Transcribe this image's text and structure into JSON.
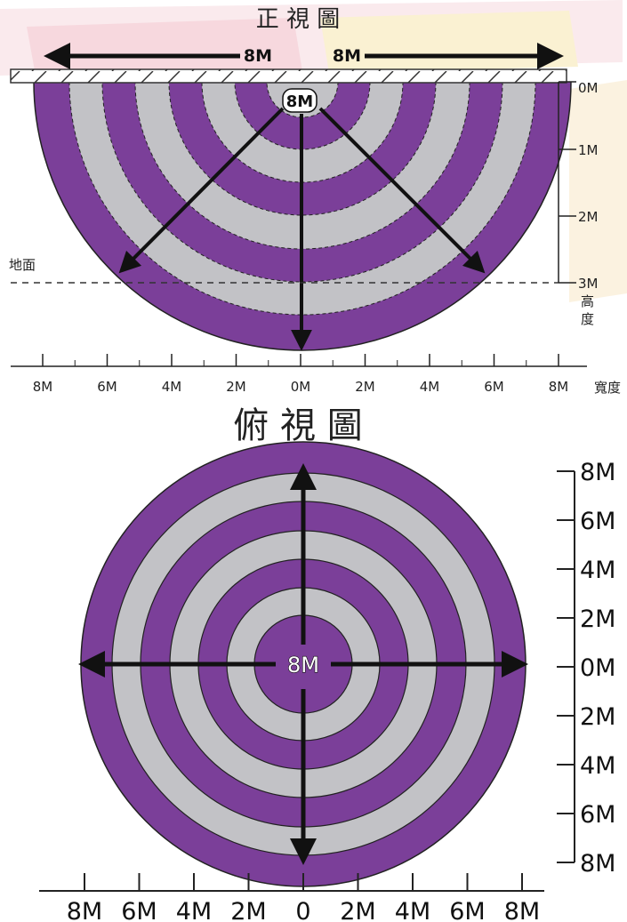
{
  "front_view": {
    "title": "正 視 圖",
    "left_arrow_label": "8M",
    "right_arrow_label": "8M",
    "center_label": "8M",
    "ground_label": "地面",
    "height_axis": {
      "ticks": [
        "0M",
        "1M",
        "2M",
        "3M"
      ],
      "label": "高度"
    },
    "width_axis": {
      "ticks": [
        "8M",
        "6M",
        "4M",
        "2M",
        "0M",
        "2M",
        "4M",
        "6M",
        "8M"
      ],
      "label": "寬度"
    }
  },
  "top_view": {
    "title": "俯 視 圖",
    "center_label": "8M",
    "y_axis_ticks": [
      "8M",
      "6M",
      "4M",
      "2M",
      "0M",
      "2M",
      "4M",
      "6M",
      "8M"
    ],
    "x_axis_ticks": [
      "8M",
      "6M",
      "4M",
      "2M",
      "0",
      "2M",
      "4M",
      "6M",
      "8M"
    ]
  },
  "colors": {
    "purple": "#7b3f99",
    "gray": "#c2c2c6",
    "banner_stripe_1": "#f2c7cf",
    "banner_stripe_2": "#f7e2a6"
  }
}
